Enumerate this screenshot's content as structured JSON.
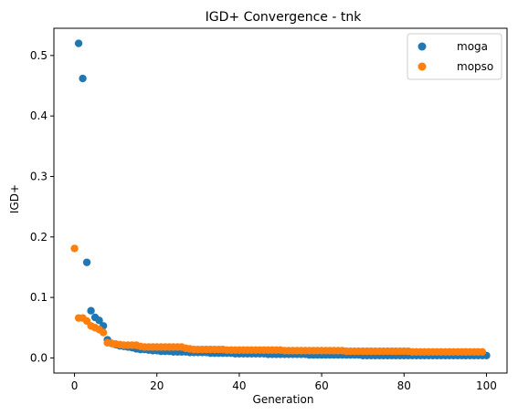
{
  "chart_data": {
    "type": "scatter",
    "title": "IGD+ Convergence - tnk",
    "xlabel": "Generation",
    "ylabel": "IGD+",
    "xlim": [
      -5,
      105
    ],
    "ylim": [
      -0.025,
      0.545
    ],
    "xticks": [
      0,
      20,
      40,
      60,
      80,
      100
    ],
    "yticks": [
      0.0,
      0.1,
      0.2,
      0.3,
      0.4,
      0.5
    ],
    "xtick_labels": [
      "0",
      "20",
      "40",
      "60",
      "80",
      "100"
    ],
    "ytick_labels": [
      "0.0",
      "0.1",
      "0.2",
      "0.3",
      "0.4",
      "0.5"
    ],
    "grid": false,
    "legend": "top-right",
    "series": [
      {
        "name": "moga",
        "color": "#1f77b4",
        "x": [
          1,
          2,
          3,
          4,
          5,
          6,
          7,
          8,
          9,
          10,
          11,
          12,
          13,
          14,
          15,
          16,
          17,
          18,
          19,
          20,
          21,
          22,
          23,
          24,
          25,
          26,
          27,
          28,
          29,
          30,
          31,
          32,
          33,
          34,
          35,
          36,
          37,
          38,
          39,
          40,
          41,
          42,
          43,
          44,
          45,
          46,
          47,
          48,
          49,
          50,
          51,
          52,
          53,
          54,
          55,
          56,
          57,
          58,
          59,
          60,
          61,
          62,
          63,
          64,
          65,
          66,
          67,
          68,
          69,
          70,
          71,
          72,
          73,
          74,
          75,
          76,
          77,
          78,
          79,
          80,
          81,
          82,
          83,
          84,
          85,
          86,
          87,
          88,
          89,
          90,
          91,
          92,
          93,
          94,
          95,
          96,
          97,
          98,
          99,
          100
        ],
        "y": [
          0.52,
          0.462,
          0.158,
          0.078,
          0.067,
          0.062,
          0.053,
          0.03,
          0.024,
          0.022,
          0.02,
          0.019,
          0.018,
          0.017,
          0.015,
          0.014,
          0.014,
          0.013,
          0.012,
          0.012,
          0.011,
          0.011,
          0.011,
          0.01,
          0.01,
          0.01,
          0.01,
          0.009,
          0.009,
          0.009,
          0.009,
          0.009,
          0.008,
          0.008,
          0.008,
          0.008,
          0.008,
          0.008,
          0.007,
          0.007,
          0.007,
          0.007,
          0.007,
          0.007,
          0.007,
          0.007,
          0.006,
          0.006,
          0.006,
          0.006,
          0.006,
          0.006,
          0.006,
          0.006,
          0.006,
          0.006,
          0.005,
          0.005,
          0.005,
          0.005,
          0.005,
          0.005,
          0.005,
          0.005,
          0.005,
          0.005,
          0.005,
          0.005,
          0.005,
          0.004,
          0.004,
          0.004,
          0.004,
          0.004,
          0.004,
          0.004,
          0.004,
          0.004,
          0.004,
          0.004,
          0.004,
          0.004,
          0.004,
          0.004,
          0.004,
          0.004,
          0.004,
          0.004,
          0.004,
          0.004,
          0.004,
          0.004,
          0.004,
          0.004,
          0.004,
          0.004,
          0.004,
          0.004,
          0.004,
          0.004
        ]
      },
      {
        "name": "mopso",
        "color": "#ff7f0e",
        "x": [
          0,
          1,
          2,
          3,
          4,
          5,
          6,
          7,
          8,
          9,
          10,
          11,
          12,
          13,
          14,
          15,
          16,
          17,
          18,
          19,
          20,
          21,
          22,
          23,
          24,
          25,
          26,
          27,
          28,
          29,
          30,
          31,
          32,
          33,
          34,
          35,
          36,
          37,
          38,
          39,
          40,
          41,
          42,
          43,
          44,
          45,
          46,
          47,
          48,
          49,
          50,
          51,
          52,
          53,
          54,
          55,
          56,
          57,
          58,
          59,
          60,
          61,
          62,
          63,
          64,
          65,
          66,
          67,
          68,
          69,
          70,
          71,
          72,
          73,
          74,
          75,
          76,
          77,
          78,
          79,
          80,
          81,
          82,
          83,
          84,
          85,
          86,
          87,
          88,
          89,
          90,
          91,
          92,
          93,
          94,
          95,
          96,
          97,
          98,
          99
        ],
        "y": [
          0.181,
          0.066,
          0.066,
          0.061,
          0.053,
          0.05,
          0.047,
          0.042,
          0.025,
          0.024,
          0.023,
          0.022,
          0.021,
          0.021,
          0.021,
          0.021,
          0.019,
          0.018,
          0.018,
          0.018,
          0.018,
          0.018,
          0.018,
          0.018,
          0.018,
          0.018,
          0.018,
          0.016,
          0.015,
          0.014,
          0.014,
          0.014,
          0.014,
          0.014,
          0.014,
          0.014,
          0.014,
          0.013,
          0.013,
          0.013,
          0.013,
          0.013,
          0.013,
          0.013,
          0.013,
          0.013,
          0.013,
          0.013,
          0.013,
          0.013,
          0.013,
          0.012,
          0.012,
          0.012,
          0.012,
          0.012,
          0.012,
          0.012,
          0.012,
          0.012,
          0.012,
          0.012,
          0.012,
          0.012,
          0.012,
          0.012,
          0.011,
          0.011,
          0.011,
          0.011,
          0.011,
          0.011,
          0.011,
          0.011,
          0.011,
          0.011,
          0.011,
          0.011,
          0.011,
          0.011,
          0.011,
          0.011,
          0.01,
          0.01,
          0.01,
          0.01,
          0.01,
          0.01,
          0.01,
          0.01,
          0.01,
          0.01,
          0.01,
          0.01,
          0.01,
          0.01,
          0.01,
          0.01,
          0.01,
          0.01
        ]
      }
    ]
  }
}
